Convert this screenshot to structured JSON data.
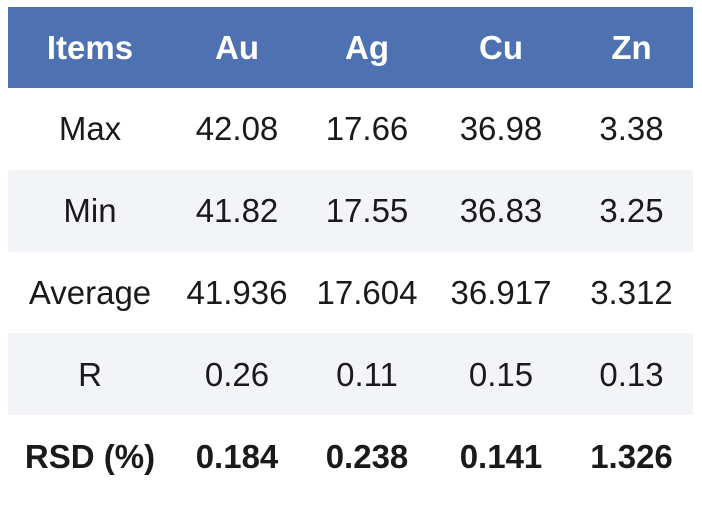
{
  "table": {
    "columns": [
      "Items",
      "Au",
      "Ag",
      "Cu",
      "Zn"
    ],
    "rows": [
      {
        "label": "Max",
        "values": [
          "42.08",
          "17.66",
          "36.98",
          "3.38"
        ]
      },
      {
        "label": "Min",
        "values": [
          "41.82",
          "17.55",
          "36.83",
          "3.25"
        ]
      },
      {
        "label": "Average",
        "values": [
          "41.936",
          "17.604",
          "36.917",
          "3.312"
        ]
      },
      {
        "label": "R",
        "values": [
          "0.26",
          "0.11",
          "0.15",
          "0.13"
        ]
      },
      {
        "label": "RSD (%)",
        "values": [
          "0.184",
          "0.238",
          "0.141",
          "1.326"
        ]
      }
    ],
    "colors": {
      "header_bg": "#4E71B2",
      "header_text": "#FFFFFF",
      "row_bg": "#FFFFFF",
      "row_alt_bg": "#F3F4F8",
      "text": "#1A1A1A"
    }
  },
  "chart_data": {
    "type": "table",
    "title": "",
    "columns": [
      "Items",
      "Au",
      "Ag",
      "Cu",
      "Zn"
    ],
    "row_labels": [
      "Max",
      "Min",
      "Average",
      "R",
      "RSD (%)"
    ],
    "series": [
      {
        "name": "Au",
        "values": [
          42.08,
          41.82,
          41.936,
          0.26,
          0.184
        ]
      },
      {
        "name": "Ag",
        "values": [
          17.66,
          17.55,
          17.604,
          0.11,
          0.238
        ]
      },
      {
        "name": "Cu",
        "values": [
          36.98,
          36.83,
          36.917,
          0.15,
          0.141
        ]
      },
      {
        "name": "Zn",
        "values": [
          3.38,
          3.25,
          3.312,
          0.13,
          1.326
        ]
      }
    ],
    "layout_hints": {
      "header_fill": "#4E71B2",
      "banded_rows": true,
      "grid": false,
      "legend_position": "none"
    }
  }
}
